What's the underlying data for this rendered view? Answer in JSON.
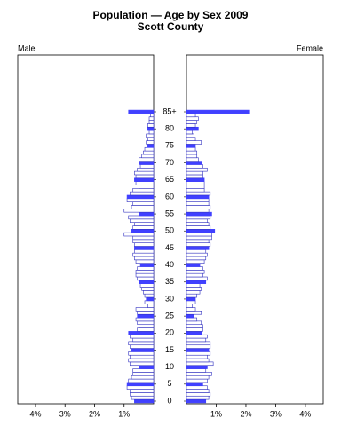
{
  "chart_data": {
    "type": "pyramid",
    "title": "Population — Age by Sex 2009",
    "subtitle": "Scott County",
    "categories": [
      "0",
      null,
      null,
      null,
      null,
      "5",
      null,
      null,
      null,
      null,
      "10",
      null,
      null,
      null,
      null,
      "15",
      null,
      null,
      null,
      null,
      "20",
      null,
      null,
      null,
      null,
      "25",
      null,
      null,
      null,
      null,
      "30",
      null,
      null,
      null,
      null,
      "35",
      null,
      null,
      null,
      null,
      "40",
      null,
      null,
      null,
      null,
      "45",
      null,
      null,
      null,
      null,
      "50",
      null,
      null,
      null,
      null,
      "55",
      null,
      null,
      null,
      null,
      "60",
      null,
      null,
      null,
      null,
      "65",
      null,
      null,
      null,
      null,
      "70",
      null,
      null,
      null,
      null,
      "75",
      null,
      null,
      null,
      null,
      "80",
      null,
      null,
      null,
      null,
      "85+"
    ],
    "series": [
      {
        "name": "Male",
        "color": "#ffffff",
        "highlight_color": "#4040ff",
        "values": [
          0.65,
          0.75,
          0.8,
          0.8,
          0.9,
          0.9,
          0.85,
          0.75,
          0.7,
          0.7,
          0.5,
          0.8,
          0.85,
          0.8,
          0.85,
          0.75,
          0.8,
          0.85,
          0.7,
          0.8,
          0.85,
          0.55,
          0.5,
          0.55,
          0.6,
          0.55,
          0.55,
          0.6,
          0.2,
          0.3,
          0.25,
          0.3,
          0.35,
          0.4,
          0.45,
          0.5,
          0.55,
          0.6,
          0.6,
          0.55,
          0.45,
          0.6,
          0.65,
          0.7,
          0.65,
          0.65,
          0.65,
          0.7,
          0.7,
          1.0,
          0.75,
          0.7,
          0.65,
          0.8,
          0.85,
          0.5,
          1.0,
          0.75,
          0.7,
          0.9,
          0.9,
          0.8,
          0.7,
          0.5,
          0.6,
          0.65,
          0.6,
          0.65,
          0.55,
          0.45,
          0.5,
          0.5,
          0.4,
          0.35,
          0.3,
          0.2,
          0.25,
          0.2,
          0.25,
          0.15,
          0.2,
          0.2,
          0.15,
          0.15,
          0.1,
          0.85
        ]
      },
      {
        "name": "Female",
        "color": "#ffffff",
        "highlight_color": "#4040ff",
        "values": [
          0.65,
          0.75,
          0.8,
          0.75,
          0.7,
          0.55,
          0.7,
          0.75,
          0.85,
          0.65,
          0.7,
          0.9,
          0.75,
          0.7,
          0.8,
          0.75,
          0.8,
          0.8,
          0.65,
          0.7,
          0.5,
          0.55,
          0.55,
          0.5,
          0.35,
          0.25,
          0.5,
          0.3,
          0.2,
          0.3,
          0.3,
          0.35,
          0.45,
          0.5,
          0.45,
          0.65,
          0.7,
          0.55,
          0.6,
          0.55,
          0.45,
          0.6,
          0.65,
          0.7,
          0.65,
          0.75,
          0.8,
          0.75,
          0.85,
          0.85,
          0.95,
          0.8,
          0.75,
          0.7,
          0.8,
          0.85,
          0.75,
          0.8,
          0.75,
          0.75,
          0.75,
          0.8,
          0.6,
          0.6,
          0.6,
          0.6,
          0.55,
          0.55,
          0.7,
          0.55,
          0.5,
          0.4,
          0.35,
          0.35,
          0.3,
          0.3,
          0.5,
          0.3,
          0.25,
          0.2,
          0.4,
          0.3,
          0.35,
          0.4,
          0.3,
          2.1
        ]
      }
    ],
    "xlim": [
      0,
      4.6
    ],
    "xticks": [
      {
        "value": 1,
        "label": "1%"
      },
      {
        "value": 2,
        "label": "2%"
      },
      {
        "value": 3,
        "label": "3%"
      },
      {
        "value": 4,
        "label": "4%"
      }
    ]
  }
}
